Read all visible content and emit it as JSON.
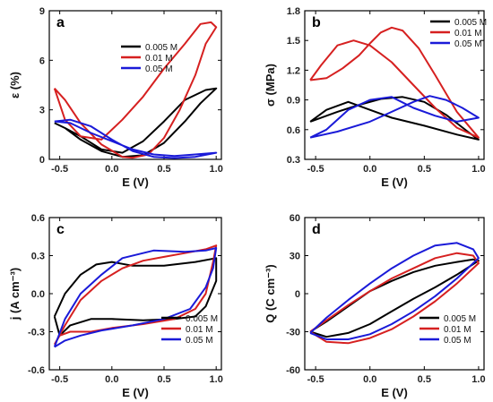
{
  "chart_data": [
    {
      "panel": "a",
      "type": "line",
      "xlabel": "E (V)",
      "ylabel": "ε (%)",
      "xlim": [
        -0.6,
        1.05
      ],
      "ylim": [
        0,
        9
      ],
      "xticks": [
        -0.5,
        0.0,
        0.5,
        1.0
      ],
      "xtick_labels": [
        "-0.5",
        "0.0",
        "0.5",
        "1.0"
      ],
      "yticks": [
        0,
        3,
        6,
        9
      ],
      "ytick_labels": [
        "0",
        "3",
        "6",
        "9"
      ],
      "legend": "upper-left",
      "series": [
        {
          "name": "0.005 M",
          "color": "#000000",
          "x": [
            -0.55,
            -0.45,
            -0.3,
            -0.1,
            0.1,
            0.3,
            0.5,
            0.7,
            0.85,
            1.0,
            0.9,
            0.7,
            0.5,
            0.3,
            0.1,
            -0.1,
            -0.3,
            -0.45,
            -0.55
          ],
          "y": [
            2.2,
            1.9,
            1.2,
            0.5,
            0.15,
            0.25,
            1.0,
            2.3,
            3.4,
            4.3,
            4.2,
            3.6,
            2.3,
            1.1,
            0.4,
            0.6,
            1.4,
            1.9,
            2.2
          ]
        },
        {
          "name": "0.01 M",
          "color": "#d62020",
          "x": [
            -0.55,
            -0.45,
            -0.3,
            -0.1,
            0.1,
            0.2,
            0.35,
            0.5,
            0.65,
            0.8,
            0.9,
            1.0,
            0.95,
            0.85,
            0.7,
            0.5,
            0.3,
            0.1,
            -0.1,
            -0.3,
            -0.45,
            -0.55
          ],
          "y": [
            4.3,
            3.6,
            2.2,
            0.9,
            0.15,
            0.1,
            0.3,
            1.3,
            3.0,
            5.1,
            7.0,
            8.0,
            8.3,
            8.2,
            7.0,
            5.5,
            3.8,
            2.4,
            1.2,
            1.4,
            2.4,
            4.3
          ]
        },
        {
          "name": "0.05 M",
          "color": "#1a1ad8",
          "x": [
            -0.55,
            -0.4,
            -0.2,
            0.0,
            0.2,
            0.4,
            0.6,
            0.8,
            1.0,
            0.8,
            0.6,
            0.4,
            0.2,
            0.0,
            -0.2,
            -0.4,
            -0.55
          ],
          "y": [
            2.3,
            2.4,
            2.0,
            1.2,
            0.5,
            0.15,
            0.08,
            0.15,
            0.4,
            0.3,
            0.2,
            0.3,
            0.6,
            1.1,
            1.6,
            2.2,
            2.3
          ]
        }
      ]
    },
    {
      "panel": "b",
      "type": "line",
      "xlabel": "E (V)",
      "ylabel": "σ (MPa)",
      "xlim": [
        -0.6,
        1.05
      ],
      "ylim": [
        0.3,
        1.8
      ],
      "xticks": [
        -0.5,
        0.0,
        0.5,
        1.0
      ],
      "xtick_labels": [
        "-0.5",
        "0.0",
        "0.5",
        "1.0"
      ],
      "yticks": [
        0.3,
        0.6,
        0.9,
        1.2,
        1.5,
        1.8
      ],
      "ytick_labels": [
        "0.3",
        "0.6",
        "0.9",
        "1.2",
        "1.5",
        "1.8"
      ],
      "legend": "upper-right",
      "series": [
        {
          "name": "0.005 M",
          "color": "#000000",
          "x": [
            -0.55,
            -0.3,
            -0.1,
            0.1,
            0.3,
            0.5,
            0.7,
            0.9,
            1.0,
            0.8,
            0.5,
            0.2,
            0.0,
            -0.2,
            -0.4,
            -0.55
          ],
          "y": [
            0.68,
            0.78,
            0.85,
            0.91,
            0.93,
            0.88,
            0.75,
            0.58,
            0.5,
            0.55,
            0.64,
            0.72,
            0.8,
            0.88,
            0.8,
            0.68
          ]
        },
        {
          "name": "0.01 M",
          "color": "#d62020",
          "x": [
            -0.55,
            -0.4,
            -0.25,
            -0.1,
            0.0,
            0.1,
            0.2,
            0.3,
            0.45,
            0.6,
            0.8,
            1.0,
            0.8,
            0.6,
            0.4,
            0.2,
            0.0,
            -0.15,
            -0.3,
            -0.45,
            -0.55
          ],
          "y": [
            1.1,
            1.12,
            1.22,
            1.35,
            1.47,
            1.58,
            1.63,
            1.6,
            1.42,
            1.15,
            0.78,
            0.52,
            0.62,
            0.82,
            1.05,
            1.28,
            1.45,
            1.5,
            1.45,
            1.25,
            1.1
          ]
        },
        {
          "name": "0.05 M",
          "color": "#1a1ad8",
          "x": [
            -0.55,
            -0.3,
            0.0,
            0.2,
            0.4,
            0.55,
            0.7,
            0.85,
            1.0,
            0.8,
            0.6,
            0.4,
            0.2,
            0.0,
            -0.2,
            -0.4,
            -0.55
          ],
          "y": [
            0.52,
            0.58,
            0.68,
            0.78,
            0.88,
            0.94,
            0.9,
            0.82,
            0.72,
            0.68,
            0.74,
            0.82,
            0.93,
            0.9,
            0.8,
            0.6,
            0.52
          ]
        }
      ]
    },
    {
      "panel": "c",
      "type": "line",
      "xlabel": "E (V)",
      "ylabel": "j (A cm⁻³)",
      "xlim": [
        -0.6,
        1.05
      ],
      "ylim": [
        -0.6,
        0.6
      ],
      "xticks": [
        -0.5,
        0.0,
        0.5,
        1.0
      ],
      "xtick_labels": [
        "-0.5",
        "0.0",
        "0.5",
        "1.0"
      ],
      "yticks": [
        -0.6,
        -0.3,
        0.0,
        0.3,
        0.6
      ],
      "ytick_labels": [
        "-0.6",
        "-0.3",
        "0.0",
        "0.3",
        "0.6"
      ],
      "legend": "lower-right",
      "series": [
        {
          "name": "0.005 M",
          "color": "#000000",
          "x": [
            -0.55,
            -0.45,
            -0.3,
            -0.15,
            0.0,
            0.2,
            0.5,
            0.8,
            1.0,
            1.0,
            0.9,
            0.8,
            0.6,
            0.3,
            0.0,
            -0.2,
            -0.4,
            -0.5,
            -0.55
          ],
          "y": [
            -0.18,
            0.0,
            0.15,
            0.23,
            0.25,
            0.22,
            0.22,
            0.25,
            0.28,
            0.1,
            -0.1,
            -0.18,
            -0.2,
            -0.21,
            -0.2,
            -0.2,
            -0.25,
            -0.33,
            -0.18
          ]
        },
        {
          "name": "0.01 M",
          "color": "#d62020",
          "x": [
            -0.55,
            -0.45,
            -0.3,
            -0.1,
            0.1,
            0.3,
            0.5,
            0.7,
            0.9,
            1.0,
            0.97,
            0.9,
            0.8,
            0.6,
            0.3,
            0.0,
            -0.2,
            -0.4,
            -0.5,
            -0.55
          ],
          "y": [
            -0.4,
            -0.25,
            -0.05,
            0.1,
            0.2,
            0.26,
            0.29,
            0.32,
            0.35,
            0.38,
            0.25,
            0.0,
            -0.12,
            -0.2,
            -0.24,
            -0.27,
            -0.3,
            -0.3,
            -0.33,
            -0.4
          ]
        },
        {
          "name": "0.05 M",
          "color": "#1a1ad8",
          "x": [
            -0.55,
            -0.45,
            -0.3,
            -0.1,
            0.1,
            0.4,
            0.7,
            0.9,
            1.0,
            0.97,
            0.9,
            0.75,
            0.5,
            0.2,
            -0.1,
            -0.3,
            -0.45,
            -0.55
          ],
          "y": [
            -0.42,
            -0.2,
            0.0,
            0.15,
            0.28,
            0.34,
            0.33,
            0.34,
            0.36,
            0.2,
            0.05,
            -0.12,
            -0.2,
            -0.25,
            -0.29,
            -0.33,
            -0.37,
            -0.42
          ]
        }
      ]
    },
    {
      "panel": "d",
      "type": "line",
      "xlabel": "E (V)",
      "ylabel": "Q (C cm⁻³)",
      "xlim": [
        -0.6,
        1.05
      ],
      "ylim": [
        -60,
        60
      ],
      "xticks": [
        -0.5,
        0.0,
        0.5,
        1.0
      ],
      "xtick_labels": [
        "-0.5",
        "0.0",
        "0.5",
        "1.0"
      ],
      "yticks": [
        -60,
        -30,
        0,
        30,
        60
      ],
      "ytick_labels": [
        "-60",
        "-30",
        "0",
        "30",
        "60"
      ],
      "legend": "lower-right",
      "series": [
        {
          "name": "0.005 M",
          "color": "#000000",
          "x": [
            -0.55,
            -0.4,
            -0.2,
            0.0,
            0.2,
            0.4,
            0.6,
            0.8,
            1.0,
            0.95,
            0.8,
            0.6,
            0.4,
            0.2,
            0.0,
            -0.2,
            -0.4,
            -0.55
          ],
          "y": [
            -30,
            -34,
            -31,
            -24,
            -14,
            -4,
            5,
            15,
            26,
            27,
            25,
            22,
            17,
            10,
            2,
            -10,
            -22,
            -30
          ]
        },
        {
          "name": "0.01 M",
          "color": "#d62020",
          "x": [
            -0.55,
            -0.4,
            -0.2,
            0.0,
            0.2,
            0.4,
            0.6,
            0.8,
            1.0,
            0.95,
            0.8,
            0.6,
            0.4,
            0.2,
            0.0,
            -0.2,
            -0.4,
            -0.55
          ],
          "y": [
            -30,
            -38,
            -39,
            -35,
            -28,
            -18,
            -6,
            8,
            24,
            30,
            32,
            28,
            20,
            12,
            2,
            -9,
            -21,
            -30
          ]
        },
        {
          "name": "0.05 M",
          "color": "#1a1ad8",
          "x": [
            -0.55,
            -0.4,
            -0.2,
            0.0,
            0.2,
            0.4,
            0.6,
            0.8,
            1.0,
            0.95,
            0.8,
            0.6,
            0.4,
            0.2,
            0.0,
            -0.2,
            -0.4,
            -0.55
          ],
          "y": [
            -31,
            -36,
            -36,
            -32,
            -24,
            -14,
            -2,
            12,
            28,
            35,
            40,
            38,
            30,
            20,
            8,
            -5,
            -19,
            -31
          ]
        }
      ]
    }
  ]
}
